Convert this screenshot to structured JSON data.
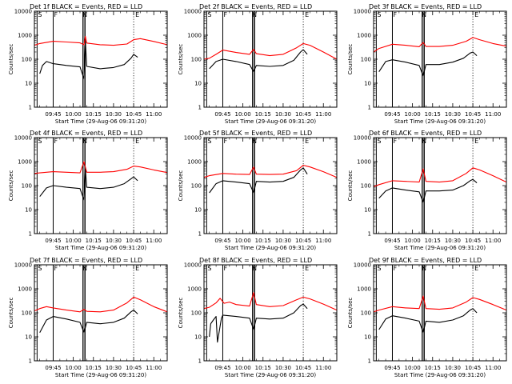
{
  "chart_data": [
    {
      "type": "line",
      "detector": "1f",
      "title": "Det 1f BLACK = Events, RED = LLD",
      "xlabel": "Start Time (29-Aug-06 09:31:20)",
      "ylabel": "Counts/sec",
      "yscale": "log",
      "ylim": [
        1,
        10000
      ],
      "xlim": [
        "09:31",
        "11:10"
      ],
      "x_ticks": [
        "09:45",
        "10:00",
        "10:15",
        "10:30",
        "10:45",
        "11:00"
      ],
      "y_ticks": [
        "1",
        "10",
        "100",
        "1000",
        "10000"
      ],
      "markers": {
        "S": "09:33",
        "F": "09:45",
        "N": "10:08",
        "E": "10:45"
      },
      "series": [
        {
          "name": "BLACK = Events",
          "color": "#000000",
          "x": [
            "09:35",
            "09:37",
            "09:40",
            "09:45",
            "09:55",
            "10:05",
            "10:08",
            "10:09",
            "10:10",
            "10:20",
            "10:30",
            "10:38",
            "10:43",
            "10:45",
            "10:48"
          ],
          "y": [
            25,
            55,
            80,
            65,
            55,
            48,
            15,
            600,
            50,
            40,
            45,
            60,
            110,
            160,
            120
          ]
        },
        {
          "name": "RED = LLD",
          "color": "#ff0000",
          "x": [
            "09:31",
            "09:35",
            "09:45",
            "09:55",
            "10:05",
            "10:08",
            "10:09",
            "10:10",
            "10:20",
            "10:30",
            "10:40",
            "10:45",
            "10:50",
            "11:00",
            "11:10"
          ],
          "y": [
            380,
            450,
            560,
            520,
            480,
            400,
            900,
            470,
            400,
            380,
            430,
            650,
            720,
            550,
            400
          ]
        }
      ]
    },
    {
      "type": "line",
      "detector": "2f",
      "title": "Det 2f BLACK = Events, RED = LLD",
      "xlabel": "Start Time (29-Aug-06 09:31:20)",
      "ylabel": "Counts/sec",
      "yscale": "log",
      "ylim": [
        1,
        10000
      ],
      "xlim": [
        "09:31",
        "11:10"
      ],
      "x_ticks": [
        "09:45",
        "10:00",
        "10:15",
        "10:30",
        "10:45",
        "11:00"
      ],
      "y_ticks": [
        "1",
        "10",
        "100",
        "1000",
        "10000"
      ],
      "markers": {
        "S": "09:33",
        "F": "09:45",
        "N": "10:08",
        "E": "10:45"
      },
      "series": [
        {
          "name": "BLACK = Events",
          "color": "#000000",
          "x": [
            "09:35",
            "09:40",
            "09:45",
            "09:55",
            "10:05",
            "10:08",
            "10:10",
            "10:20",
            "10:30",
            "10:38",
            "10:43",
            "10:45",
            "10:48"
          ],
          "y": [
            40,
            80,
            100,
            80,
            60,
            30,
            55,
            50,
            55,
            90,
            200,
            250,
            160
          ]
        },
        {
          "name": "RED = LLD",
          "color": "#ff0000",
          "x": [
            "09:31",
            "09:35",
            "09:40",
            "09:45",
            "09:55",
            "10:05",
            "10:08",
            "10:10",
            "10:20",
            "10:30",
            "10:40",
            "10:45",
            "10:50",
            "11:00",
            "11:10"
          ],
          "y": [
            100,
            110,
            160,
            240,
            190,
            160,
            260,
            170,
            140,
            160,
            300,
            450,
            380,
            200,
            100
          ]
        }
      ]
    },
    {
      "type": "line",
      "detector": "3f",
      "title": "Det 3f BLACK = Events, RED = LLD",
      "xlabel": "Start Time (29-Aug-06 09:31:20)",
      "ylabel": "Counts/sec",
      "yscale": "log",
      "ylim": [
        1,
        10000
      ],
      "xlim": [
        "09:31",
        "11:10"
      ],
      "x_ticks": [
        "09:45",
        "10:00",
        "10:15",
        "10:30",
        "10:45",
        "11:00"
      ],
      "y_ticks": [
        "1",
        "10",
        "100",
        "1000",
        "10000"
      ],
      "markers": {
        "S": "09:33",
        "F": "09:45",
        "N": "10:08",
        "E": "10:45"
      },
      "series": [
        {
          "name": "BLACK = Events",
          "color": "#000000",
          "x": [
            "09:35",
            "09:40",
            "09:45",
            "09:55",
            "10:05",
            "10:08",
            "10:10",
            "10:20",
            "10:30",
            "10:38",
            "10:43",
            "10:45",
            "10:48"
          ],
          "y": [
            30,
            80,
            95,
            75,
            55,
            20,
            60,
            60,
            75,
            110,
            180,
            200,
            140
          ]
        },
        {
          "name": "RED = LLD",
          "color": "#ff0000",
          "x": [
            "09:31",
            "09:35",
            "09:45",
            "09:55",
            "10:05",
            "10:08",
            "10:10",
            "10:20",
            "10:30",
            "10:40",
            "10:45",
            "10:50",
            "11:00",
            "11:10"
          ],
          "y": [
            200,
            280,
            420,
            380,
            330,
            500,
            340,
            340,
            380,
            560,
            800,
            650,
            450,
            350
          ]
        }
      ]
    },
    {
      "type": "line",
      "detector": "4f",
      "title": "Det 4f BLACK = Events, RED = LLD",
      "xlabel": "Start Time (29-Aug-06 09:31:20)",
      "ylabel": "Counts/sec",
      "yscale": "log",
      "ylim": [
        1,
        10000
      ],
      "xlim": [
        "09:31",
        "11:10"
      ],
      "x_ticks": [
        "09:45",
        "10:00",
        "10:15",
        "10:30",
        "10:45",
        "11:00"
      ],
      "y_ticks": [
        "1",
        "10",
        "100",
        "1000",
        "10000"
      ],
      "markers": {
        "S": "09:33",
        "F": "09:45",
        "N": "10:08",
        "E": "10:45"
      },
      "series": [
        {
          "name": "BLACK = Events",
          "color": "#000000",
          "x": [
            "09:35",
            "09:40",
            "09:45",
            "09:55",
            "10:05",
            "10:08",
            "10:09",
            "10:10",
            "10:20",
            "10:30",
            "10:38",
            "10:43",
            "10:45",
            "10:48"
          ],
          "y": [
            35,
            80,
            100,
            85,
            75,
            25,
            500,
            85,
            75,
            85,
            120,
            190,
            230,
            160
          ]
        },
        {
          "name": "RED = LLD",
          "color": "#ff0000",
          "x": [
            "09:31",
            "09:35",
            "09:45",
            "09:55",
            "10:05",
            "10:08",
            "10:10",
            "10:20",
            "10:30",
            "10:40",
            "10:45",
            "10:50",
            "11:00",
            "11:10"
          ],
          "y": [
            320,
            340,
            380,
            360,
            340,
            1000,
            360,
            360,
            380,
            480,
            650,
            600,
            450,
            350
          ]
        }
      ]
    },
    {
      "type": "line",
      "detector": "5f",
      "title": "Det 5f BLACK = Events, RED = LLD",
      "xlabel": "Start Time (29-Aug-06 09:31:20)",
      "ylabel": "Counts/sec",
      "yscale": "log",
      "ylim": [
        1,
        10000
      ],
      "xlim": [
        "09:31",
        "11:10"
      ],
      "x_ticks": [
        "09:45",
        "10:00",
        "10:15",
        "10:30",
        "10:45",
        "11:00"
      ],
      "y_ticks": [
        "1",
        "10",
        "100",
        "1000",
        "10000"
      ],
      "markers": {
        "S": "09:33",
        "F": "09:45",
        "N": "10:08",
        "E": "10:45"
      },
      "series": [
        {
          "name": "BLACK = Events",
          "color": "#000000",
          "x": [
            "09:35",
            "09:40",
            "09:45",
            "09:55",
            "10:05",
            "10:08",
            "10:10",
            "10:20",
            "10:30",
            "10:38",
            "10:43",
            "10:45",
            "10:48"
          ],
          "y": [
            50,
            120,
            160,
            140,
            120,
            50,
            150,
            140,
            150,
            220,
            450,
            550,
            300
          ]
        },
        {
          "name": "RED = LLD",
          "color": "#ff0000",
          "x": [
            "09:31",
            "09:35",
            "09:45",
            "09:55",
            "10:05",
            "10:08",
            "10:10",
            "10:20",
            "10:30",
            "10:40",
            "10:45",
            "10:50",
            "11:00",
            "11:10"
          ],
          "y": [
            220,
            260,
            320,
            300,
            290,
            600,
            300,
            290,
            300,
            420,
            700,
            600,
            380,
            220
          ]
        }
      ]
    },
    {
      "type": "line",
      "detector": "6f",
      "title": "Det 6f BLACK = Events, RED = LLD",
      "xlabel": "Start Time (29-Aug-06 09:31:20)",
      "ylabel": "Counts/sec",
      "yscale": "log",
      "ylim": [
        1,
        10000
      ],
      "xlim": [
        "09:31",
        "11:10"
      ],
      "x_ticks": [
        "09:45",
        "10:00",
        "10:15",
        "10:30",
        "10:45",
        "11:00"
      ],
      "y_ticks": [
        "1",
        "10",
        "100",
        "1000",
        "10000"
      ],
      "markers": {
        "S": "09:33",
        "F": "09:45",
        "N": "10:08",
        "E": "10:45"
      },
      "series": [
        {
          "name": "BLACK = Events",
          "color": "#000000",
          "x": [
            "09:35",
            "09:40",
            "09:45",
            "09:55",
            "10:05",
            "10:08",
            "10:10",
            "10:20",
            "10:30",
            "10:38",
            "10:43",
            "10:45",
            "10:48"
          ],
          "y": [
            30,
            60,
            80,
            65,
            55,
            20,
            60,
            60,
            65,
            100,
            160,
            180,
            130
          ]
        },
        {
          "name": "RED = LLD",
          "color": "#ff0000",
          "x": [
            "09:31",
            "09:35",
            "09:45",
            "09:55",
            "10:05",
            "10:08",
            "10:10",
            "10:20",
            "10:30",
            "10:40",
            "10:45",
            "10:50",
            "11:00",
            "11:10"
          ],
          "y": [
            90,
            110,
            160,
            150,
            140,
            500,
            150,
            140,
            160,
            320,
            550,
            450,
            260,
            140
          ]
        }
      ]
    },
    {
      "type": "line",
      "detector": "7f",
      "title": "Det 7f BLACK = Events, RED = LLD",
      "xlabel": "Start Time (29-Aug-06 09:31:20)",
      "ylabel": "Counts/sec",
      "yscale": "log",
      "ylim": [
        1,
        10000
      ],
      "xlim": [
        "09:31",
        "11:10"
      ],
      "x_ticks": [
        "09:45",
        "10:00",
        "10:15",
        "10:30",
        "10:45",
        "11:00"
      ],
      "y_ticks": [
        "1",
        "10",
        "100",
        "1000",
        "10000"
      ],
      "markers": {
        "S": "09:33",
        "F": "09:45",
        "N": "10:08",
        "E": "10:45"
      },
      "series": [
        {
          "name": "BLACK = Events",
          "color": "#000000",
          "x": [
            "09:35",
            "09:40",
            "09:45",
            "09:55",
            "10:05",
            "10:08",
            "10:10",
            "10:20",
            "10:30",
            "10:38",
            "10:43",
            "10:45",
            "10:48"
          ],
          "y": [
            15,
            50,
            70,
            55,
            40,
            15,
            40,
            35,
            40,
            60,
            110,
            130,
            90
          ]
        },
        {
          "name": "RED = LLD",
          "color": "#ff0000",
          "x": [
            "09:31",
            "09:35",
            "09:40",
            "09:45",
            "09:55",
            "10:05",
            "10:08",
            "10:10",
            "10:20",
            "10:30",
            "10:40",
            "10:45",
            "10:50",
            "11:00",
            "11:10"
          ],
          "y": [
            120,
            150,
            180,
            160,
            130,
            110,
            140,
            115,
            110,
            130,
            260,
            450,
            350,
            180,
            110
          ]
        }
      ]
    },
    {
      "type": "line",
      "detector": "8f",
      "title": "Det 8f BLACK = Events, RED = LLD",
      "xlabel": "Start Time (29-Aug-06 09:31:20)",
      "ylabel": "Counts/sec",
      "yscale": "log",
      "ylim": [
        1,
        10000
      ],
      "xlim": [
        "09:31",
        "11:10"
      ],
      "x_ticks": [
        "09:45",
        "10:00",
        "10:15",
        "10:30",
        "10:45",
        "11:00"
      ],
      "y_ticks": [
        "1",
        "10",
        "100",
        "1000",
        "10000"
      ],
      "markers": {
        "S": "09:33",
        "F": "09:45",
        "N": "10:08",
        "E": "10:45"
      },
      "series": [
        {
          "name": "BLACK = Events",
          "color": "#000000",
          "x": [
            "09:35",
            "09:36",
            "09:38",
            "09:40",
            "09:41",
            "09:44",
            "09:45",
            "09:55",
            "10:05",
            "10:08",
            "10:10",
            "10:20",
            "10:30",
            "10:38",
            "10:43",
            "10:45",
            "10:48"
          ],
          "y": [
            10,
            35,
            50,
            70,
            6,
            60,
            80,
            70,
            60,
            20,
            60,
            55,
            60,
            100,
            200,
            230,
            150
          ]
        },
        {
          "name": "RED = LLD",
          "color": "#ff0000",
          "x": [
            "09:31",
            "09:35",
            "09:40",
            "09:43",
            "09:46",
            "09:50",
            "09:55",
            "10:05",
            "10:08",
            "10:10",
            "10:20",
            "10:30",
            "10:40",
            "10:45",
            "10:50",
            "11:00",
            "11:10"
          ],
          "y": [
            150,
            170,
            260,
            400,
            250,
            280,
            220,
            190,
            700,
            220,
            180,
            200,
            350,
            450,
            380,
            230,
            130
          ]
        }
      ]
    },
    {
      "type": "line",
      "detector": "9f",
      "title": "Det 9f BLACK = Events, RED = LLD",
      "xlabel": "Start Time (29-Aug-06 09:31:20)",
      "ylabel": "Counts/sec",
      "yscale": "log",
      "ylim": [
        1,
        10000
      ],
      "xlim": [
        "09:31",
        "11:10"
      ],
      "x_ticks": [
        "09:45",
        "10:00",
        "10:15",
        "10:30",
        "10:45",
        "11:00"
      ],
      "y_ticks": [
        "1",
        "10",
        "100",
        "1000",
        "10000"
      ],
      "markers": {
        "S": "09:33",
        "F": "09:45",
        "N": "10:08",
        "E": "10:45"
      },
      "series": [
        {
          "name": "BLACK = Events",
          "color": "#000000",
          "x": [
            "09:35",
            "09:40",
            "09:45",
            "09:55",
            "10:05",
            "10:08",
            "10:10",
            "10:20",
            "10:30",
            "10:38",
            "10:43",
            "10:45",
            "10:48"
          ],
          "y": [
            20,
            55,
            75,
            60,
            45,
            15,
            45,
            40,
            50,
            75,
            130,
            150,
            100
          ]
        },
        {
          "name": "RED = LLD",
          "color": "#ff0000",
          "x": [
            "09:31",
            "09:35",
            "09:45",
            "09:55",
            "10:05",
            "10:08",
            "10:10",
            "10:20",
            "10:30",
            "10:40",
            "10:45",
            "10:50",
            "11:00",
            "11:10"
          ],
          "y": [
            110,
            130,
            180,
            160,
            150,
            500,
            150,
            140,
            160,
            280,
            430,
            360,
            220,
            130
          ]
        }
      ]
    }
  ]
}
